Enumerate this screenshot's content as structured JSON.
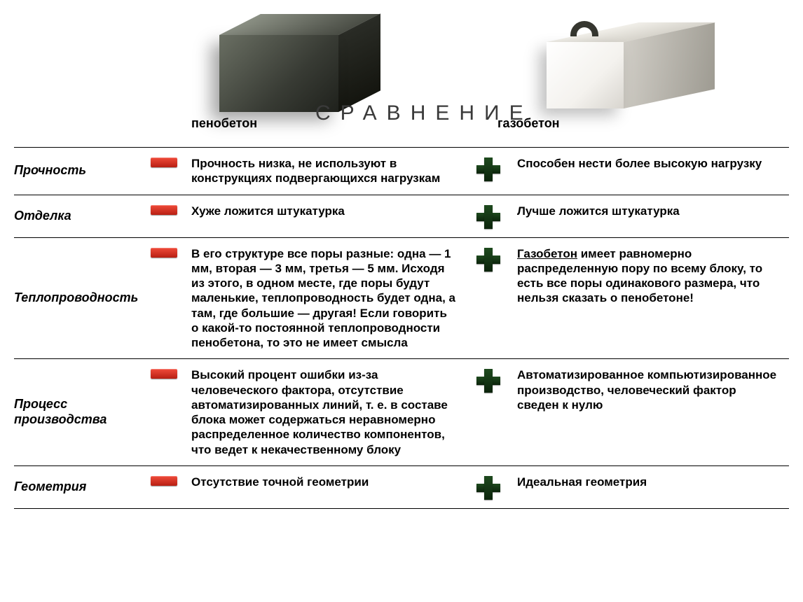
{
  "title": "СРАВНЕНИЕ",
  "left_material": "пенобетон",
  "right_material": "газобетон",
  "colors": {
    "minus": "#d8281a",
    "plus": "#174017",
    "border": "#000000",
    "text": "#000000"
  },
  "rows": [
    {
      "property": "Прочность",
      "left_icon": "minus",
      "left_text": "Прочность низка, не используют в конструкциях подвергающихся нагрузкам",
      "right_icon": "plus",
      "right_text": "Способен нести более высокую нагрузку"
    },
    {
      "property": "Отделка",
      "left_icon": "minus",
      "left_text": "Хуже ложится штукатурка",
      "right_icon": "plus",
      "right_text": "Лучше ложится штукатурка"
    },
    {
      "property": "Теплопроводность",
      "left_icon": "minus",
      "left_text": "В его структуре все поры разные: одна — 1 мм, вторая — 3 мм, третья — 5 мм. Исходя из этого, в одном месте, где поры будут маленькие, теплопроводность будет одна, а там, где большие — другая! Если говорить о какой-то постоянной теплопроводности пенобетона, то это не имеет смысла",
      "right_icon": "plus",
      "right_text_prefix_underlined": "Газобетон",
      "right_text_rest": " имеет равномерно распределенную пору по всему блоку, то есть все поры одинакового размера, что нельзя сказать о пенобетоне!"
    },
    {
      "property": "Процесс производства",
      "left_icon": "minus",
      "left_text": "Высокий процент ошибки из-за человеческого фактора, отсутствие автоматизированных линий, т. е. в составе блока может содержаться неравномерно распределенное количество компонентов, что ведет к некачественному блоку",
      "right_icon": "plus",
      "right_text": "Автоматизированное компьютизированное производство, человеческий фактор сведен к нулю"
    },
    {
      "property": "Геометрия",
      "left_icon": "minus",
      "left_text": "Отсутствие точной геометрии",
      "right_icon": "plus",
      "right_text": "Идеальная геометрия"
    }
  ]
}
